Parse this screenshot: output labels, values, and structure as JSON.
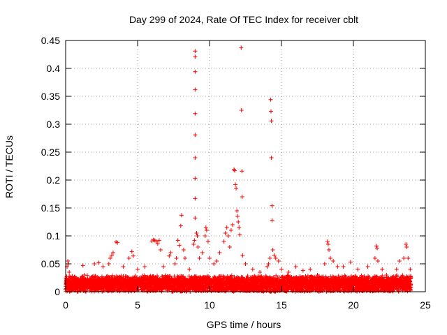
{
  "chart_data": {
    "type": "scatter",
    "title": "Day 299 of 2024, Rate Of TEC Index for receiver cblt",
    "xlabel": "GPS time / hours",
    "ylabel": "ROTI / TECUs",
    "xlim": [
      0,
      25
    ],
    "ylim": [
      0,
      0.45
    ],
    "x_ticks": [
      0,
      5,
      10,
      15,
      20,
      25
    ],
    "x_tick_labels": [
      "0",
      "5",
      "10",
      "15",
      "20",
      "25"
    ],
    "y_ticks": [
      0,
      0.05,
      0.1,
      0.15,
      0.2,
      0.25,
      0.3,
      0.35,
      0.4,
      0.45
    ],
    "y_tick_labels": [
      "0",
      "0.05",
      "0.1",
      "0.15",
      "0.2",
      "0.25",
      "0.3",
      "0.35",
      "0.4",
      "0.45"
    ],
    "grid": true,
    "marker": "+",
    "series": [
      {
        "name": "ROTI",
        "color": "#ff0000",
        "points": [
          [
            0.1,
            0.045
          ],
          [
            0.15,
            0.055
          ],
          [
            0.2,
            0.05
          ],
          [
            0.25,
            0.035
          ],
          [
            0.3,
            0.025
          ],
          [
            0.05,
            0.015
          ],
          [
            0.1,
            0.008
          ],
          [
            1.2,
            0.047
          ],
          [
            1.3,
            0.03
          ],
          [
            2.0,
            0.05
          ],
          [
            2.3,
            0.052
          ],
          [
            2.6,
            0.045
          ],
          [
            3.0,
            0.05
          ],
          [
            3.1,
            0.06
          ],
          [
            3.2,
            0.065
          ],
          [
            3.3,
            0.07
          ],
          [
            3.5,
            0.089
          ],
          [
            3.6,
            0.088
          ],
          [
            4.0,
            0.045
          ],
          [
            4.4,
            0.06
          ],
          [
            4.6,
            0.072
          ],
          [
            4.7,
            0.064
          ],
          [
            5.0,
            0.04
          ],
          [
            5.5,
            0.045
          ],
          [
            6.0,
            0.091
          ],
          [
            6.1,
            0.093
          ],
          [
            6.2,
            0.092
          ],
          [
            6.3,
            0.09
          ],
          [
            6.4,
            0.086
          ],
          [
            6.5,
            0.092
          ],
          [
            6.6,
            0.075
          ],
          [
            6.8,
            0.045
          ],
          [
            7.2,
            0.064
          ],
          [
            7.3,
            0.07
          ],
          [
            7.6,
            0.05
          ],
          [
            7.7,
            0.06
          ],
          [
            7.8,
            0.092
          ],
          [
            7.9,
            0.083
          ],
          [
            8.0,
            0.118
          ],
          [
            8.05,
            0.137
          ],
          [
            8.2,
            0.075
          ],
          [
            8.3,
            0.06
          ],
          [
            8.6,
            0.04
          ],
          [
            8.9,
            0.085
          ],
          [
            8.95,
            0.092
          ],
          [
            9.0,
            0.431
          ],
          [
            9.0,
            0.421
          ],
          [
            9.0,
            0.394
          ],
          [
            9.0,
            0.362
          ],
          [
            9.0,
            0.319
          ],
          [
            9.0,
            0.281
          ],
          [
            9.0,
            0.24
          ],
          [
            9.0,
            0.203
          ],
          [
            9.0,
            0.167
          ],
          [
            9.0,
            0.132
          ],
          [
            9.1,
            0.105
          ],
          [
            9.15,
            0.1
          ],
          [
            9.2,
            0.08
          ],
          [
            9.3,
            0.06
          ],
          [
            9.5,
            0.07
          ],
          [
            9.7,
            0.1
          ],
          [
            9.75,
            0.115
          ],
          [
            9.8,
            0.11
          ],
          [
            9.9,
            0.09
          ],
          [
            10.0,
            0.06
          ],
          [
            10.3,
            0.05
          ],
          [
            10.5,
            0.055
          ],
          [
            10.7,
            0.07
          ],
          [
            11.0,
            0.09
          ],
          [
            11.1,
            0.105
          ],
          [
            11.2,
            0.115
          ],
          [
            11.3,
            0.1
          ],
          [
            11.4,
            0.08
          ],
          [
            11.5,
            0.11
          ],
          [
            11.6,
            0.12
          ],
          [
            11.7,
            0.219
          ],
          [
            11.75,
            0.217
          ],
          [
            11.8,
            0.192
          ],
          [
            11.85,
            0.185
          ],
          [
            11.9,
            0.145
          ],
          [
            11.95,
            0.135
          ],
          [
            12.0,
            0.125
          ],
          [
            12.05,
            0.115
          ],
          [
            12.1,
            0.102
          ],
          [
            12.2,
            0.437
          ],
          [
            12.22,
            0.325
          ],
          [
            12.25,
            0.216
          ],
          [
            12.27,
            0.17
          ],
          [
            12.3,
            0.065
          ],
          [
            12.5,
            0.05
          ],
          [
            13.0,
            0.04
          ],
          [
            13.5,
            0.035
          ],
          [
            14.0,
            0.045
          ],
          [
            14.1,
            0.05
          ],
          [
            14.2,
            0.06
          ],
          [
            14.25,
            0.344
          ],
          [
            14.27,
            0.323
          ],
          [
            14.3,
            0.306
          ],
          [
            14.3,
            0.24
          ],
          [
            14.35,
            0.154
          ],
          [
            14.35,
            0.128
          ],
          [
            14.4,
            0.075
          ],
          [
            14.5,
            0.065
          ],
          [
            14.6,
            0.06
          ],
          [
            14.8,
            0.055
          ],
          [
            15.0,
            0.04
          ],
          [
            15.5,
            0.035
          ],
          [
            16.0,
            0.045
          ],
          [
            16.5,
            0.038
          ],
          [
            17.0,
            0.04
          ],
          [
            17.5,
            0.03
          ],
          [
            18.0,
            0.05
          ],
          [
            18.2,
            0.09
          ],
          [
            18.25,
            0.085
          ],
          [
            18.3,
            0.075
          ],
          [
            18.4,
            0.06
          ],
          [
            18.6,
            0.055
          ],
          [
            18.9,
            0.045
          ],
          [
            19.3,
            0.045
          ],
          [
            19.8,
            0.053
          ],
          [
            20.3,
            0.04
          ],
          [
            21.0,
            0.045
          ],
          [
            21.5,
            0.06
          ],
          [
            21.6,
            0.082
          ],
          [
            21.65,
            0.078
          ],
          [
            21.7,
            0.055
          ],
          [
            22.0,
            0.04
          ],
          [
            22.3,
            0.03
          ],
          [
            22.6,
            0.025
          ],
          [
            23.0,
            0.04
          ],
          [
            23.2,
            0.055
          ],
          [
            23.5,
            0.06
          ],
          [
            23.65,
            0.085
          ],
          [
            23.7,
            0.08
          ],
          [
            23.8,
            0.06
          ],
          [
            23.95,
            0.04
          ]
        ]
      }
    ],
    "dense_band": {
      "description": "dense cloud of low ROTI values",
      "x_range": [
        0,
        24
      ],
      "typical_max": 0.03
    }
  }
}
